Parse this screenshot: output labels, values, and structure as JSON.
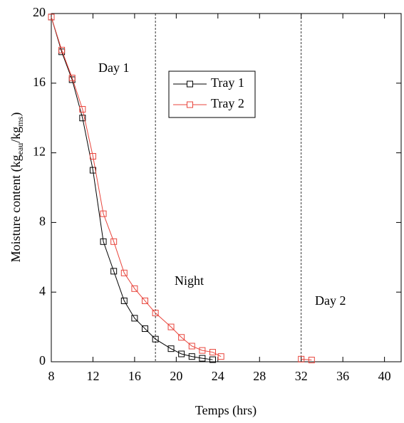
{
  "chart_data": {
    "type": "line",
    "xlabel": "Temps (hrs)",
    "ylabel": [
      "Moisture content  (kg",
      "eau",
      "/kg",
      "ms",
      ")"
    ],
    "xlim": [
      8,
      41.6
    ],
    "ylim": [
      0,
      20
    ],
    "xticks": [
      8,
      12,
      16,
      20,
      24,
      28,
      32,
      36,
      40
    ],
    "yticks": [
      0,
      4,
      8,
      12,
      16,
      20
    ],
    "vlines": [
      18,
      32
    ],
    "annotations": [
      "Day 1",
      "Night",
      "Day 2"
    ],
    "series": [
      {
        "name": "Tray 1",
        "color": "#000000",
        "x": [
          8,
          9,
          10,
          11,
          12,
          13,
          14,
          15,
          16,
          17,
          18,
          19.5,
          20.5,
          21.5,
          22.5,
          23.5
        ],
        "values": [
          19.8,
          17.8,
          16.2,
          14.0,
          11.0,
          6.9,
          5.2,
          3.5,
          2.5,
          1.9,
          1.3,
          0.75,
          0.45,
          0.3,
          0.2,
          0.12
        ]
      },
      {
        "name": "Tray 2",
        "color": "#e8453c",
        "x": [
          8,
          9,
          10,
          11,
          12,
          13,
          14,
          15,
          16,
          17,
          18,
          19.5,
          20.5,
          21.5,
          22.5,
          23.5,
          24.3,
          null,
          32,
          33
        ],
        "values": [
          19.8,
          17.9,
          16.3,
          14.5,
          11.8,
          8.5,
          6.9,
          5.1,
          4.2,
          3.5,
          2.8,
          2.0,
          1.4,
          0.9,
          0.65,
          0.55,
          0.3,
          null,
          0.15,
          0.1
        ]
      }
    ]
  }
}
